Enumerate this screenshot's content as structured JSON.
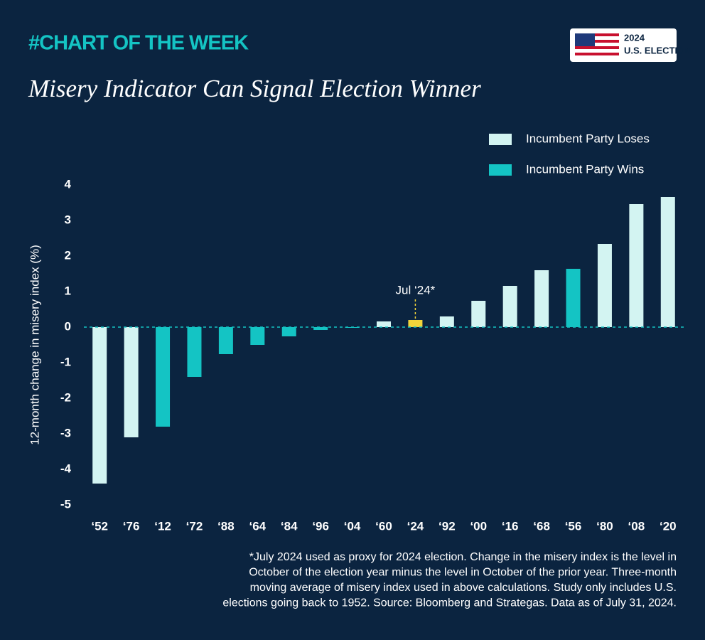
{
  "header": {
    "tag": "#CHART OF THE WEEK",
    "badge_year": "2024",
    "badge_text": "U.S. ELECTION"
  },
  "chart_data": {
    "type": "bar",
    "title": "Misery Indicator Can Signal Election Winner",
    "y_label": "12-month change in misery index (%)",
    "categories": [
      "‘52",
      "‘76",
      "‘12",
      "‘72",
      "‘88",
      "‘64",
      "‘84",
      "‘96",
      "‘04",
      "‘60",
      "‘24",
      "‘92",
      "‘00",
      "‘16",
      "‘68",
      "‘56",
      "‘80",
      "‘08",
      "‘20"
    ],
    "values": [
      -4.4,
      -3.1,
      -2.8,
      -1.4,
      -0.76,
      -0.5,
      -0.26,
      -0.08,
      -0.02,
      0.16,
      0.2,
      0.3,
      0.74,
      1.16,
      1.6,
      1.64,
      2.34,
      3.46,
      3.66
    ],
    "colors": [
      "#d3f4f2",
      "#d3f4f2",
      "#14c4c4",
      "#14c4c4",
      "#14c4c4",
      "#14c4c4",
      "#14c4c4",
      "#14c4c4",
      "#14c4c4",
      "#d3f4f2",
      "#f2d43a",
      "#d3f4f2",
      "#d3f4f2",
      "#d3f4f2",
      "#d3f4f2",
      "#14c4c4",
      "#d3f4f2",
      "#d3f4f2",
      "#d3f4f2"
    ],
    "legend": [
      {
        "name": "Incumbent Party Loses",
        "color": "#d3f4f2"
      },
      {
        "name": "Incumbent Party Wins",
        "color": "#14c4c4"
      }
    ],
    "annotation": {
      "text": "Jul ‘24*",
      "category_index": 10
    },
    "ylim": [
      -5,
      4
    ],
    "yticks": [
      4,
      3,
      2,
      1,
      0,
      -1,
      -2,
      -3,
      -4,
      -5
    ],
    "footnote": [
      "*July 2024 used as proxy for 2024 election. Change in the misery index is the level in",
      "October of the election year minus the level in October of the prior year. Three-month",
      "moving average of misery index used in above calculations. Study only includes U.S.",
      "elections going back to 1952. Source: Bloomberg and Strategas. Data as of July 31, 2024."
    ]
  }
}
